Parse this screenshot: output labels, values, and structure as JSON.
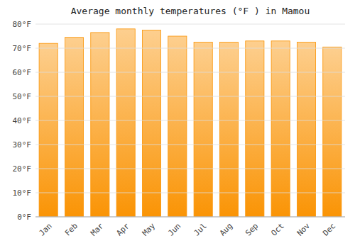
{
  "chart_data": {
    "type": "bar",
    "title": "Average monthly temperatures (°F ) in Mamou",
    "categories": [
      "Jan",
      "Feb",
      "Mar",
      "Apr",
      "May",
      "Jun",
      "Jul",
      "Aug",
      "Sep",
      "Oct",
      "Nov",
      "Dec"
    ],
    "values": [
      72,
      74.5,
      76.5,
      78,
      77.5,
      75,
      72.5,
      72.5,
      73,
      73,
      72.5,
      70.5
    ],
    "color": "#FA9405",
    "ylim": [
      0,
      80
    ],
    "yticks": [
      {
        "value": 0,
        "label": "0°F"
      },
      {
        "value": 10,
        "label": "10°F"
      },
      {
        "value": 20,
        "label": "20°F"
      },
      {
        "value": 30,
        "label": "30°F"
      },
      {
        "value": 40,
        "label": "40°F"
      },
      {
        "value": 50,
        "label": "50°F"
      },
      {
        "value": 60,
        "label": "60°F"
      },
      {
        "value": 70,
        "label": "70°F"
      },
      {
        "value": 80,
        "label": "80°F"
      }
    ],
    "grid": true
  }
}
